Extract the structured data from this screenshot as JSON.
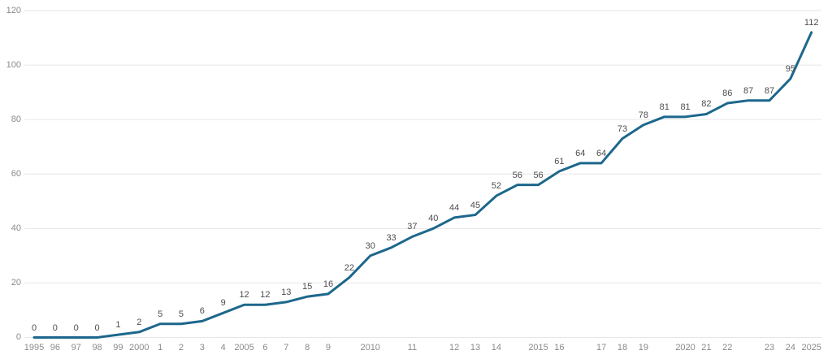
{
  "chart_data": {
    "type": "line",
    "title": "",
    "xlabel": "",
    "ylabel": "",
    "legend": "none",
    "grid": true,
    "data_labels_visible": true,
    "ylim": [
      0,
      120
    ],
    "yticks": [
      0,
      20,
      40,
      60,
      80,
      100,
      120
    ],
    "x_tick_labels": [
      "1995",
      "96",
      "97",
      "98",
      "99",
      "2000",
      "1",
      "2",
      "3",
      "4",
      "2005",
      "6",
      "7",
      "8",
      "9",
      "",
      "2010",
      "",
      "11",
      "",
      "12",
      "13",
      "14",
      "",
      "2015",
      "16",
      "",
      "17",
      "18",
      "19",
      "",
      "2020",
      "21",
      "22",
      "",
      "23",
      "24",
      "2025"
    ],
    "series": [
      {
        "name": "value",
        "values": [
          0,
          0,
          0,
          0,
          1,
          2,
          5,
          5,
          6,
          9,
          12,
          12,
          13,
          15,
          16,
          22,
          30,
          33,
          37,
          40,
          44,
          45,
          52,
          56,
          56,
          61,
          64,
          64,
          73,
          78,
          81,
          81,
          82,
          86,
          87,
          87,
          95,
          112
        ]
      }
    ],
    "colors": {
      "line": "#1c678c",
      "grid": "#e6e6e6",
      "data_label": "#4d4d4d",
      "axis_label": "#8a8a8a",
      "background": "#ffffff"
    }
  }
}
